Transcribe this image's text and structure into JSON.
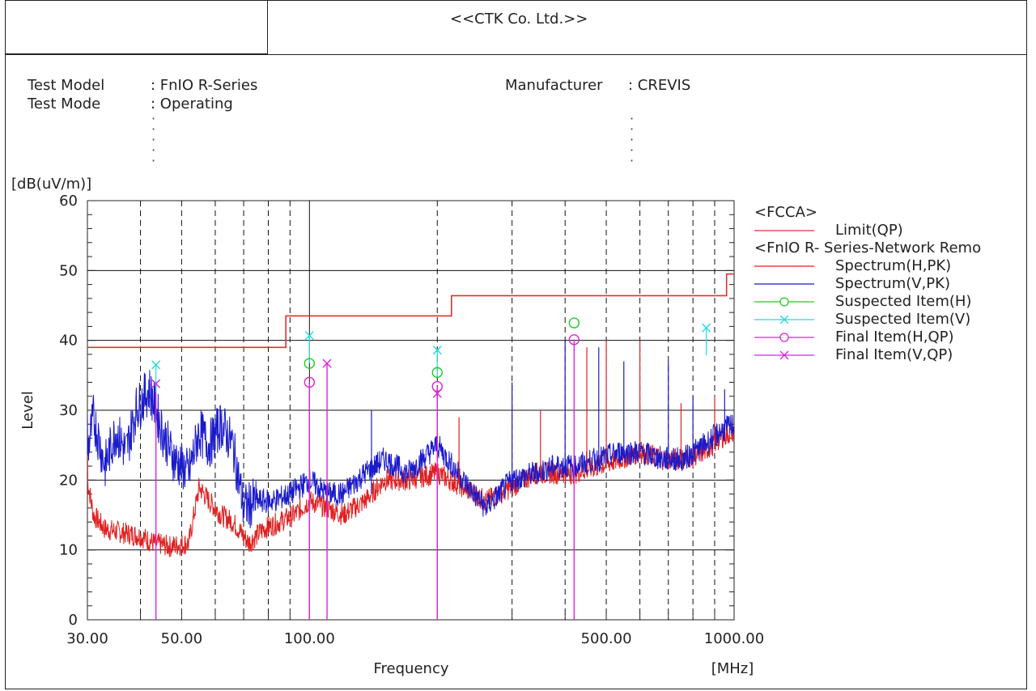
{
  "header": {
    "company": "<<CTK Co. Ltd.>>",
    "test_model_label": "Test Model",
    "test_model_value": ": FnIO R-Series",
    "test_mode_label": "Test Mode",
    "test_mode_value": ": Operating",
    "manufacturer_label": "Manufacturer",
    "manufacturer_value": ": CREVIS"
  },
  "chart_data": {
    "type": "line",
    "xscale": "log",
    "xlim": [
      30,
      1000
    ],
    "ylim": [
      0,
      60
    ],
    "yunit": "[dB(uV/m)]",
    "ylabel": "Level",
    "xlabel": "Frequency",
    "xunit": "[MHz]",
    "x_tick_labels": [
      {
        "value": 30,
        "label": "30.00"
      },
      {
        "value": 50,
        "label": "50.00"
      },
      {
        "value": 100,
        "label": "100.00"
      },
      {
        "value": 500,
        "label": "500.00"
      },
      {
        "value": 1000,
        "label": "1000.00"
      }
    ],
    "y_ticks": [
      0,
      10,
      20,
      30,
      40,
      50,
      60
    ],
    "legend": {
      "group1": "<FCCA>",
      "group2": "<FnIO R- Series-Network Remo",
      "items": [
        {
          "name": "Limit(QP)",
          "color": "#e03030",
          "marker": "none"
        },
        {
          "name": "Spectrum(H,PK)",
          "color": "#e02020",
          "marker": "none"
        },
        {
          "name": "Spectrum(V,PK)",
          "color": "#1a1acc",
          "marker": "none"
        },
        {
          "name": "Suspected Item(H)",
          "color": "#22cc22",
          "marker": "circle"
        },
        {
          "name": "Suspected Item(V)",
          "color": "#22dddd",
          "marker": "cross"
        },
        {
          "name": "Final Item(H,QP)",
          "color": "#dd22dd",
          "marker": "circle"
        },
        {
          "name": "Final Item(V,QP)",
          "color": "#dd22dd",
          "marker": "cross"
        }
      ]
    },
    "limit_qp": [
      {
        "x": 30,
        "y": 39.0
      },
      {
        "x": 88,
        "y": 39.0
      },
      {
        "x": 88,
        "y": 43.5
      },
      {
        "x": 216,
        "y": 43.5
      },
      {
        "x": 216,
        "y": 46.4
      },
      {
        "x": 960,
        "y": 46.4
      },
      {
        "x": 960,
        "y": 49.5
      },
      {
        "x": 1000,
        "y": 49.5
      }
    ],
    "spectrum_h_pk": [
      {
        "x": 30,
        "y": 20
      },
      {
        "x": 31,
        "y": 15
      },
      {
        "x": 33,
        "y": 13
      },
      {
        "x": 36,
        "y": 12.5
      },
      {
        "x": 40,
        "y": 12
      },
      {
        "x": 43,
        "y": 11
      },
      {
        "x": 47,
        "y": 10.5
      },
      {
        "x": 52,
        "y": 11
      },
      {
        "x": 55,
        "y": 19
      },
      {
        "x": 58,
        "y": 17
      },
      {
        "x": 62,
        "y": 15
      },
      {
        "x": 66,
        "y": 14
      },
      {
        "x": 72,
        "y": 11
      },
      {
        "x": 78,
        "y": 13
      },
      {
        "x": 85,
        "y": 14
      },
      {
        "x": 92,
        "y": 15
      },
      {
        "x": 100,
        "y": 17
      },
      {
        "x": 110,
        "y": 16
      },
      {
        "x": 120,
        "y": 15
      },
      {
        "x": 135,
        "y": 17
      },
      {
        "x": 150,
        "y": 20
      },
      {
        "x": 170,
        "y": 20
      },
      {
        "x": 200,
        "y": 21
      },
      {
        "x": 230,
        "y": 19
      },
      {
        "x": 260,
        "y": 17
      },
      {
        "x": 300,
        "y": 19
      },
      {
        "x": 340,
        "y": 21
      },
      {
        "x": 380,
        "y": 21
      },
      {
        "x": 420,
        "y": 21
      },
      {
        "x": 480,
        "y": 22
      },
      {
        "x": 540,
        "y": 23
      },
      {
        "x": 600,
        "y": 24
      },
      {
        "x": 680,
        "y": 23
      },
      {
        "x": 760,
        "y": 23
      },
      {
        "x": 850,
        "y": 24
      },
      {
        "x": 930,
        "y": 26
      },
      {
        "x": 1000,
        "y": 27
      }
    ],
    "spectrum_v_pk": [
      {
        "x": 30,
        "y": 24
      },
      {
        "x": 31,
        "y": 29
      },
      {
        "x": 33,
        "y": 22
      },
      {
        "x": 35,
        "y": 27
      },
      {
        "x": 37,
        "y": 24
      },
      {
        "x": 39,
        "y": 30
      },
      {
        "x": 42,
        "y": 33
      },
      {
        "x": 45,
        "y": 27
      },
      {
        "x": 48,
        "y": 23
      },
      {
        "x": 52,
        "y": 21
      },
      {
        "x": 55,
        "y": 27
      },
      {
        "x": 58,
        "y": 25
      },
      {
        "x": 62,
        "y": 28
      },
      {
        "x": 66,
        "y": 25
      },
      {
        "x": 70,
        "y": 16
      },
      {
        "x": 75,
        "y": 17
      },
      {
        "x": 82,
        "y": 17
      },
      {
        "x": 90,
        "y": 18
      },
      {
        "x": 100,
        "y": 20
      },
      {
        "x": 110,
        "y": 18
      },
      {
        "x": 120,
        "y": 18
      },
      {
        "x": 135,
        "y": 21
      },
      {
        "x": 150,
        "y": 23
      },
      {
        "x": 170,
        "y": 21
      },
      {
        "x": 200,
        "y": 25
      },
      {
        "x": 230,
        "y": 20
      },
      {
        "x": 260,
        "y": 16
      },
      {
        "x": 300,
        "y": 20
      },
      {
        "x": 340,
        "y": 21
      },
      {
        "x": 380,
        "y": 22
      },
      {
        "x": 420,
        "y": 22
      },
      {
        "x": 480,
        "y": 23
      },
      {
        "x": 540,
        "y": 24
      },
      {
        "x": 600,
        "y": 24
      },
      {
        "x": 680,
        "y": 23
      },
      {
        "x": 760,
        "y": 23
      },
      {
        "x": 850,
        "y": 25
      },
      {
        "x": 930,
        "y": 27
      },
      {
        "x": 1000,
        "y": 28
      }
    ],
    "peak_spikes": [
      {
        "x": 140,
        "y": 30
      },
      {
        "x": 225,
        "y": 29
      },
      {
        "x": 300,
        "y": 34
      },
      {
        "x": 350,
        "y": 30
      },
      {
        "x": 400,
        "y": 40
      },
      {
        "x": 450,
        "y": 39
      },
      {
        "x": 480,
        "y": 39
      },
      {
        "x": 500,
        "y": 40
      },
      {
        "x": 550,
        "y": 37
      },
      {
        "x": 600,
        "y": 40
      },
      {
        "x": 700,
        "y": 37
      },
      {
        "x": 750,
        "y": 31
      },
      {
        "x": 800,
        "y": 32
      },
      {
        "x": 900,
        "y": 32
      },
      {
        "x": 950,
        "y": 33
      }
    ],
    "suspected_h": [
      {
        "x": 100,
        "y": 36.7
      },
      {
        "x": 200,
        "y": 35.4
      },
      {
        "x": 420,
        "y": 42.5
      }
    ],
    "suspected_v": [
      {
        "x": 43.5,
        "y": 36.5
      },
      {
        "x": 100,
        "y": 40.7
      },
      {
        "x": 200,
        "y": 38.6
      },
      {
        "x": 860,
        "y": 41.8
      }
    ],
    "final_h_qp": [
      {
        "x": 100,
        "y": 34.0
      },
      {
        "x": 200,
        "y": 33.4
      },
      {
        "x": 420,
        "y": 40.1
      }
    ],
    "final_v_qp": [
      {
        "x": 43.5,
        "y": 33.8
      },
      {
        "x": 110,
        "y": 36.7
      },
      {
        "x": 200,
        "y": 32.4
      }
    ]
  }
}
